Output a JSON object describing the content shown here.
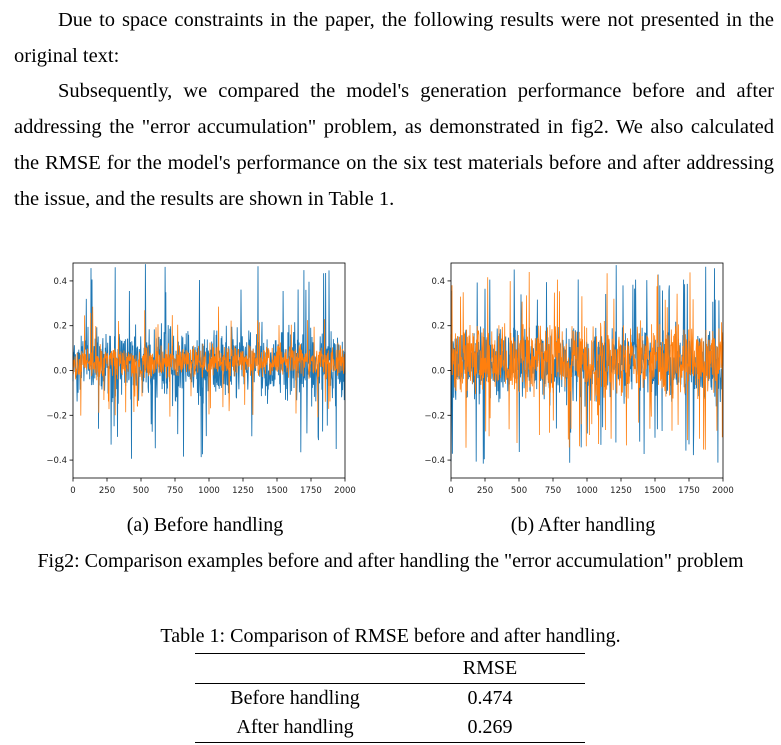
{
  "text": {
    "para1": "Due to space constraints in the paper, the following results were not presented in the original text:",
    "para2": "Subsequently, we compared the model's generation performance before and after addressing the \"error accumulation\" problem, as demonstrated in fig2. We also calculated the RMSE for the model's performance on the six test materials before and after addressing the issue, and the results are shown in Table 1."
  },
  "figure": {
    "caption": "Fig2: Comparison examples before and after handling the \"error accumulation\" problem",
    "subcaption_a": "(a) Before handling",
    "subcaption_b": "(b) After handling"
  },
  "table": {
    "caption": "Table 1: Comparison of RMSE before and after handling.",
    "header": [
      "",
      "RMSE"
    ],
    "rows": [
      [
        "Before handling",
        "0.474"
      ],
      [
        "After handling",
        "0.269"
      ]
    ]
  },
  "chart_data": [
    {
      "type": "line",
      "title": "",
      "xlabel": "",
      "ylabel": "",
      "xlim": [
        0,
        2000
      ],
      "ylim": [
        -0.48,
        0.48
      ],
      "xticks": [
        0,
        250,
        500,
        750,
        1000,
        1250,
        1500,
        1750,
        2000
      ],
      "xtick_labels": [
        "0",
        "250",
        "500",
        "750",
        "1000",
        "1250",
        "1500",
        "1750",
        "2000"
      ],
      "yticks": [
        -0.4,
        -0.2,
        0.0,
        0.2,
        0.4
      ],
      "ytick_labels": [
        "−0.4",
        "−0.2",
        "0.0",
        "0.2",
        "0.4"
      ],
      "grid": false,
      "series": [
        {
          "color": "#1f77b4",
          "center": 0.03,
          "band": 0.2,
          "max_peak": 0.45
        },
        {
          "color": "#ff7f0e",
          "center": 0.04,
          "band": 0.09,
          "max_peak": 0.25
        }
      ]
    },
    {
      "type": "line",
      "title": "",
      "xlabel": "",
      "ylabel": "",
      "xlim": [
        0,
        2000
      ],
      "ylim": [
        -0.48,
        0.48
      ],
      "xticks": [
        0,
        250,
        500,
        750,
        1000,
        1250,
        1500,
        1750,
        2000
      ],
      "xtick_labels": [
        "0",
        "250",
        "500",
        "750",
        "1000",
        "1250",
        "1500",
        "1750",
        "2000"
      ],
      "yticks": [
        -0.4,
        -0.2,
        0.0,
        0.2,
        0.4
      ],
      "ytick_labels": [
        "−0.4",
        "−0.2",
        "0.0",
        "0.2",
        "0.4"
      ],
      "grid": false,
      "series": [
        {
          "color": "#1f77b4",
          "center": 0.03,
          "band": 0.2,
          "max_peak": 0.45
        },
        {
          "color": "#ff7f0e",
          "center": 0.04,
          "band": 0.2,
          "max_peak": 0.4
        }
      ]
    }
  ]
}
